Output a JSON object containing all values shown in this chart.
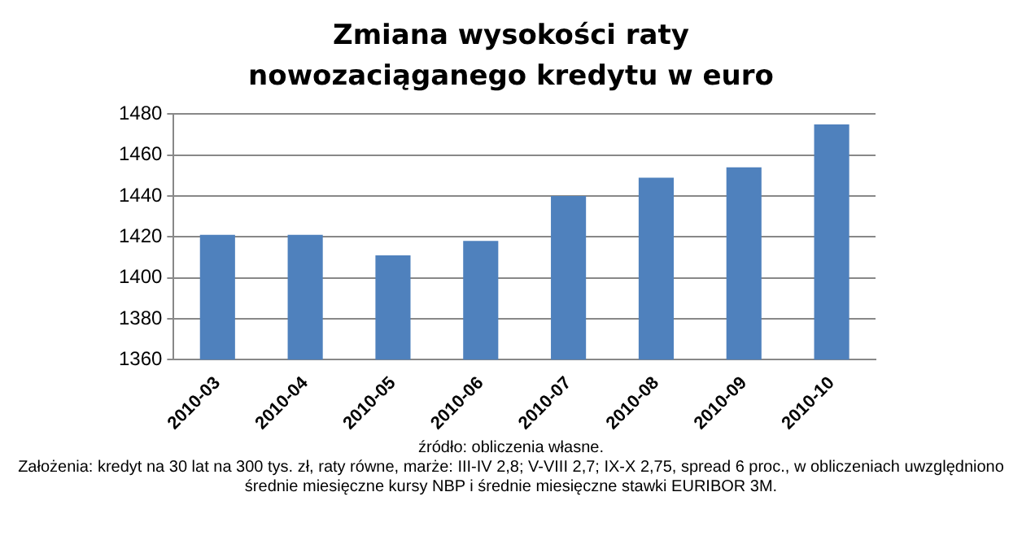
{
  "chart_data": {
    "type": "bar",
    "title": "Zmiana wysokości raty nowozaciąganego kredytu w euro",
    "categories": [
      "2010-03",
      "2010-04",
      "2010-05",
      "2010-06",
      "2010-07",
      "2010-08",
      "2010-09",
      "2010-10"
    ],
    "values": [
      1421,
      1421,
      1411,
      1418,
      1440,
      1449,
      1454,
      1475
    ],
    "color": "#4f81bd",
    "ylim": [
      1360,
      1480
    ],
    "yticks": [
      1360,
      1380,
      1400,
      1420,
      1440,
      1460,
      1480
    ],
    "grid": "y",
    "legend": false,
    "annotations": [
      "źródło: obliczenia własne.",
      "Założenia: kredyt na 30 lat na 300 tys. zł, raty równe, marże: III-IV 2,8; V-VIII 2,7; IX-X 2,75, spread 6 proc., w obliczeniach uwzględniono średnie miesięczne kursy NBP i średnie miesięczne stawki EURIBOR 3M."
    ]
  }
}
